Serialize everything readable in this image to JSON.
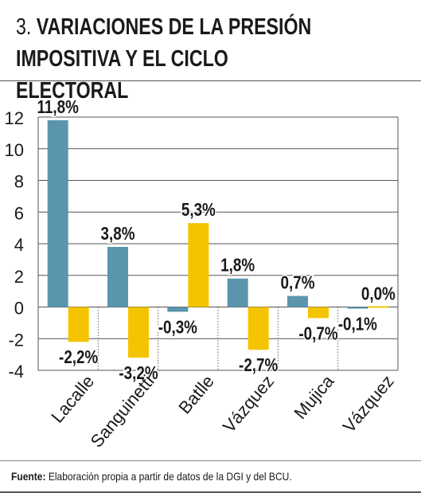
{
  "title": {
    "number": "3.",
    "text": "VARIACIONES DE LA PRESIÓN IMPOSITIVA Y EL CICLO ELECTORAL"
  },
  "footer": {
    "label": "Fuente:",
    "text": "Elaboración propia a partir de datos de la DGI y del BCU."
  },
  "chart_data": {
    "type": "bar",
    "categories": [
      "Lacalle",
      "Sanguinetti",
      "Batlle",
      "Vázquez",
      "Mujica",
      "Vázquez"
    ],
    "series": [
      {
        "color": "#5b95ad",
        "values": [
          11.8,
          3.8,
          -0.3,
          1.8,
          0.7,
          -0.1
        ],
        "labels": [
          "11,8%",
          "3,8%",
          "-0,3%",
          "1,8%",
          "0,7%",
          "-0,1%"
        ]
      },
      {
        "color": "#f5c400",
        "values": [
          -2.2,
          -3.2,
          5.3,
          -2.7,
          -0.7,
          0.0
        ],
        "labels": [
          "-2,2%",
          "-3,2%",
          "5,3%",
          "-2,7%",
          "-0,7%",
          "0,0%"
        ]
      }
    ],
    "ylim": [
      -4,
      12
    ],
    "yticks": [
      "12",
      "10",
      "8",
      "6",
      "4",
      "2",
      "0",
      "-2",
      "-4"
    ],
    "grid": true,
    "legend": false
  }
}
